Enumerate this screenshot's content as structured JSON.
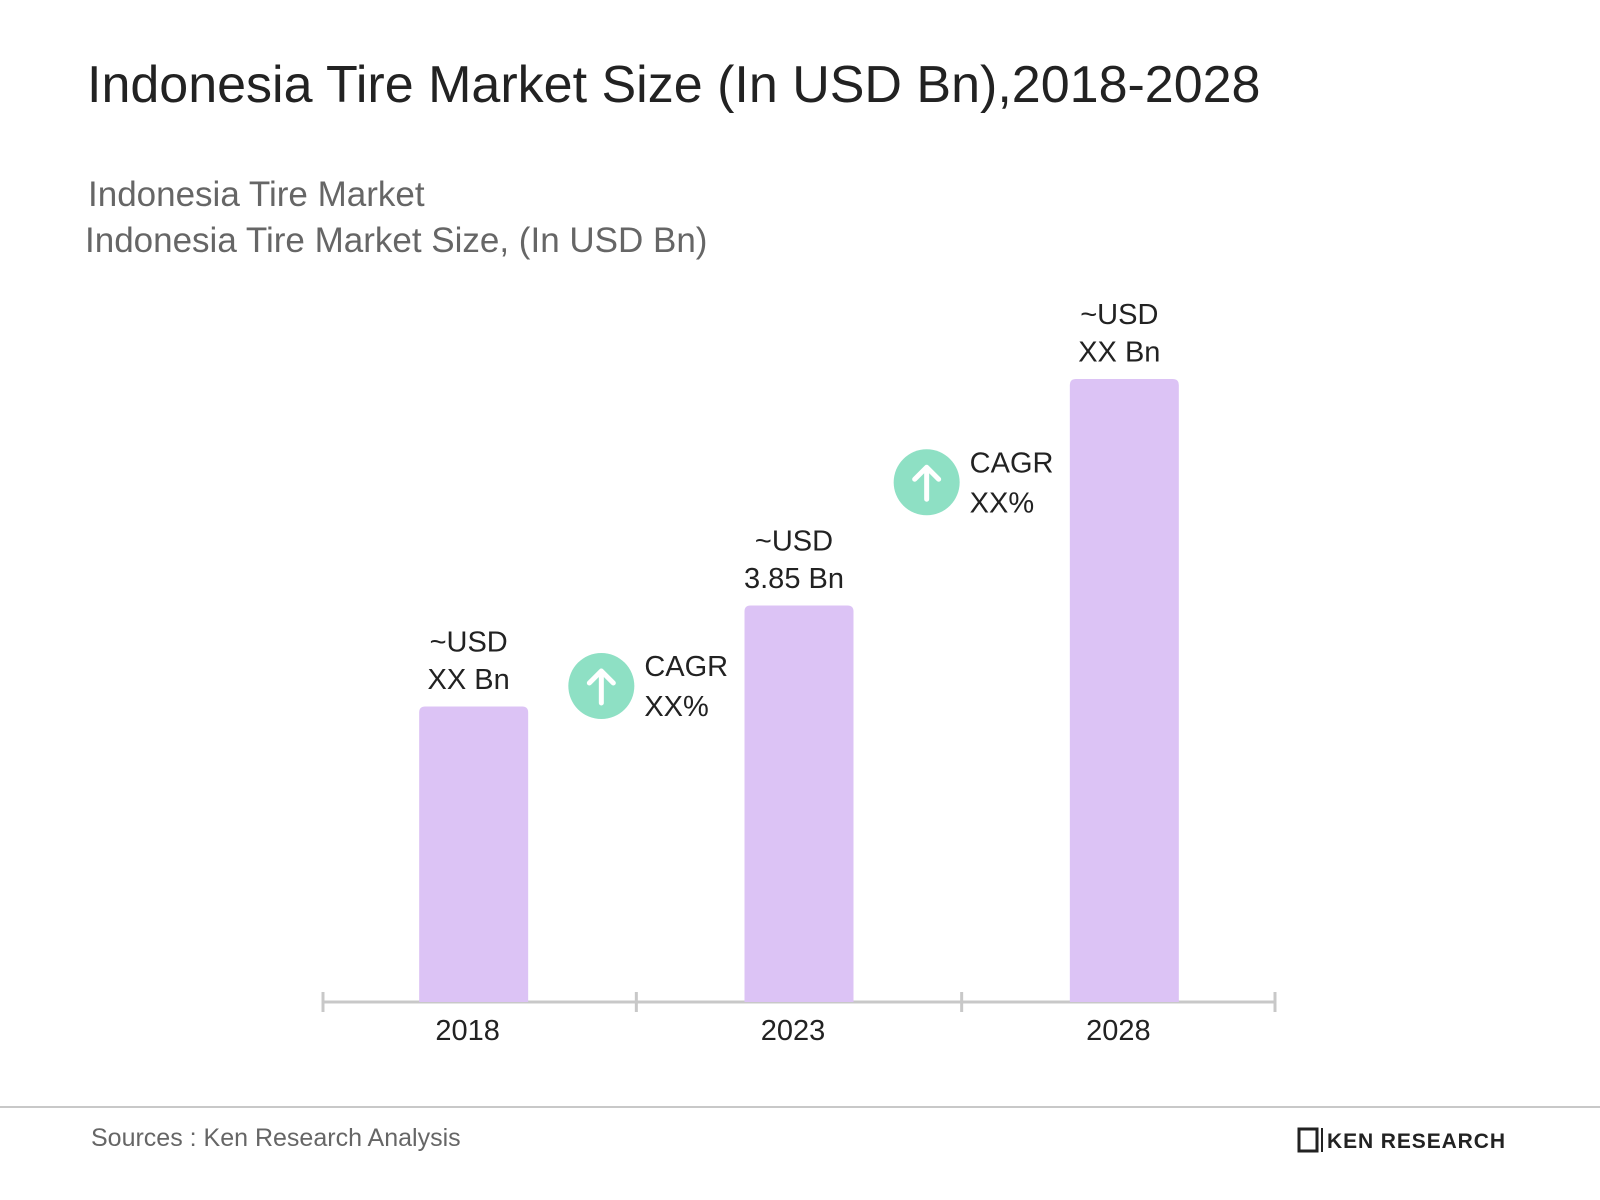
{
  "chart_data": {
    "type": "bar",
    "title": "Indonesia Tire Market Size (In USD Bn),2018-2028",
    "subtitle": [
      "Indonesia Tire Market",
      "Indonesia Tire Market Size, (In USD Bn)"
    ],
    "categories": [
      "2018",
      "2023",
      "2028"
    ],
    "values": [
      2.87,
      3.85,
      6.05
    ],
    "value_labels": [
      "~USD XX Bn",
      "~USD 3.85 Bn",
      "~USD XX Bn"
    ],
    "color": "#dcc3f5",
    "annotations": [
      {
        "label": "CAGR",
        "value": "XX%"
      },
      {
        "label": "CAGR",
        "value": "XX%"
      }
    ],
    "annotation_color": "#8ee0c4",
    "source": "Sources : Ken Research Analysis",
    "logo": "KEN RESEARCH"
  }
}
